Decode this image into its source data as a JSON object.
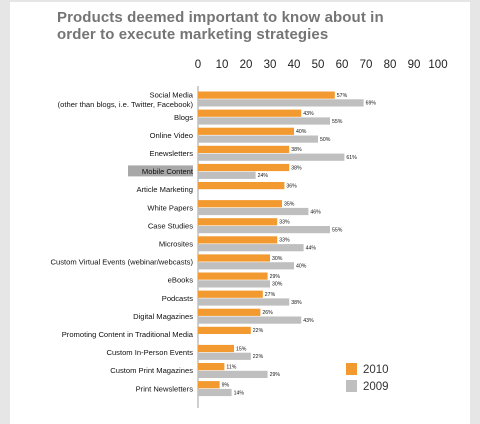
{
  "title": "Products deemed important to know about in order to execute marketing strategies",
  "chart_data": {
    "type": "bar",
    "orientation": "horizontal",
    "title": "Products deemed important to know about in order to execute marketing strategies",
    "xlim": [
      0,
      100
    ],
    "xticks": [
      "0",
      "10",
      "20",
      "30",
      "40",
      "50",
      "60",
      "70",
      "80",
      "90",
      "100"
    ],
    "categories": [
      [
        "Social Media",
        "(other than blogs, i.e. Twitter, Facebook)"
      ],
      [
        "Blogs"
      ],
      [
        "Online Video"
      ],
      [
        "Enewsletters"
      ],
      [
        "Mobile Content"
      ],
      [
        "Article Marketing"
      ],
      [
        "White Papers"
      ],
      [
        "Case Studies"
      ],
      [
        "Microsites"
      ],
      [
        "Custom Virtual Events (webinar/webcasts)"
      ],
      [
        "eBooks"
      ],
      [
        "Podcasts"
      ],
      [
        "Digital Magazines"
      ],
      [
        "Promoting Content in Traditional Media"
      ],
      [
        "Custom In-Person Events"
      ],
      [
        "Custom Print Magazines"
      ],
      [
        "Print Newsletters"
      ]
    ],
    "highlighted_category": "Mobile Content",
    "series": [
      {
        "name": "2010",
        "color": "#f29a30",
        "values": [
          57,
          43,
          40,
          38,
          38,
          36,
          35,
          33,
          33,
          30,
          29,
          27,
          26,
          22,
          15,
          11,
          9
        ],
        "labels": [
          "57%",
          "43%",
          "40%",
          "38%",
          "38%",
          "36%",
          "35%",
          "33%",
          "33%",
          "30%",
          "29%",
          "27%",
          "26%",
          "22%",
          "15%",
          "11%",
          "9%"
        ]
      },
      {
        "name": "2009",
        "color": "#bfbfbf",
        "values": [
          69,
          55,
          50,
          61,
          24,
          null,
          46,
          55,
          44,
          40,
          30,
          38,
          43,
          null,
          22,
          29,
          14
        ],
        "labels": [
          "69%",
          "55%",
          "50%",
          "61%",
          "24%",
          null,
          "46%",
          "55%",
          "44%",
          "40%",
          "30%",
          "38%",
          "43%",
          null,
          "22%",
          "29%",
          "14%"
        ]
      }
    ],
    "grid": false,
    "legend_position": "bottom-right"
  }
}
